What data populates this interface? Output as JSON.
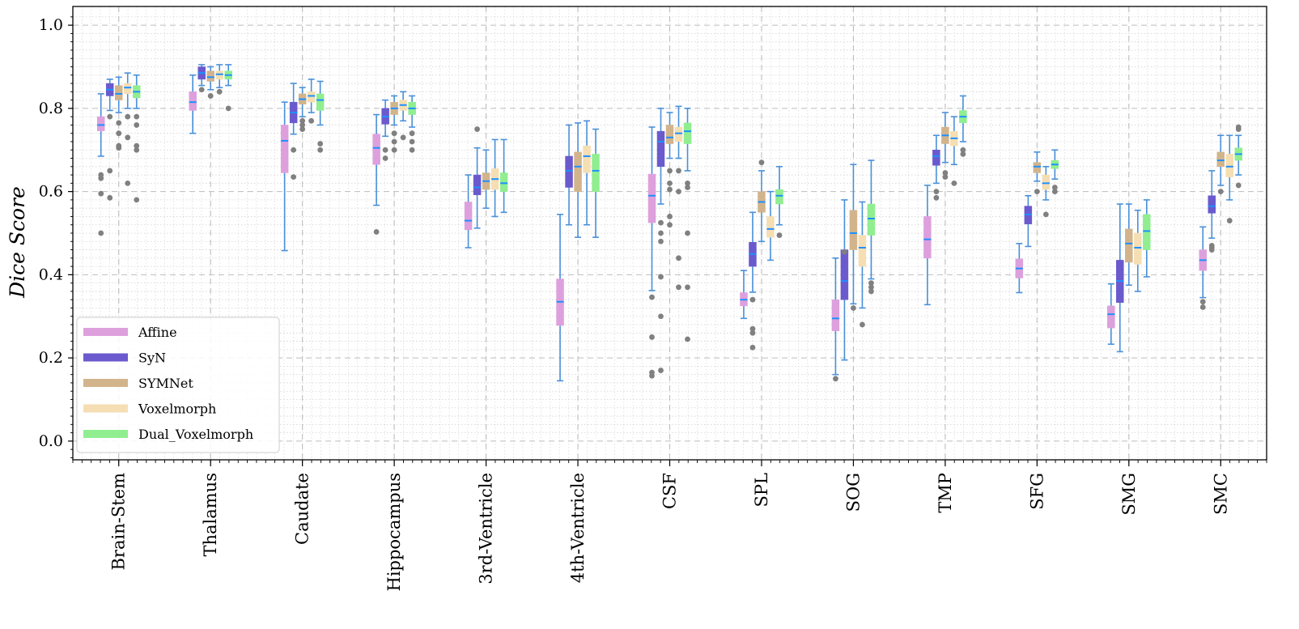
{
  "chart_data": {
    "type": "box",
    "ylabel": "Dice Score",
    "xlabel": "",
    "ylim": [
      -0.045,
      1.045
    ],
    "yticks": [
      0.0,
      0.2,
      0.4,
      0.6,
      0.8,
      1.0
    ],
    "ytick_labels": [
      "0.0",
      "0.2",
      "0.4",
      "0.6",
      "0.8",
      "1.0"
    ],
    "grid": true,
    "minor_grid": true,
    "legend_position": "lower-left",
    "categories": [
      "Brain-Stem",
      "Thalamus",
      "Caudate",
      "Hippocampus",
      "3rd-Ventricle",
      "4th-Ventricle",
      "CSF",
      "SPL",
      "SOG",
      "TMP",
      "SFG",
      "SMG",
      "SMC"
    ],
    "colors": {
      "median": "#1e90ff",
      "whisker": "#4a90d9",
      "outlier": "#808080",
      "grid": "#c8c8c8"
    },
    "series": [
      {
        "name": "Affine",
        "color": "#dda0dd",
        "stats": [
          {
            "q1": 0.746,
            "median": 0.76,
            "q3": 0.78,
            "whislo": 0.685,
            "whishi": 0.835,
            "fliers": [
              0.5,
              0.595,
              0.632,
              0.64
            ]
          },
          {
            "q1": 0.795,
            "median": 0.815,
            "q3": 0.84,
            "whislo": 0.74,
            "whishi": 0.88,
            "fliers": []
          },
          {
            "q1": 0.645,
            "median": 0.722,
            "q3": 0.76,
            "whislo": 0.458,
            "whishi": 0.815,
            "fliers": []
          },
          {
            "q1": 0.665,
            "median": 0.705,
            "q3": 0.738,
            "whislo": 0.567,
            "whishi": 0.785,
            "fliers": [
              0.503
            ]
          },
          {
            "q1": 0.508,
            "median": 0.53,
            "q3": 0.575,
            "whislo": 0.465,
            "whishi": 0.64,
            "fliers": []
          },
          {
            "q1": 0.278,
            "median": 0.335,
            "q3": 0.39,
            "whislo": 0.145,
            "whishi": 0.545,
            "fliers": []
          },
          {
            "q1": 0.525,
            "median": 0.59,
            "q3": 0.642,
            "whislo": 0.362,
            "whishi": 0.755,
            "fliers": [
              0.157,
              0.165,
              0.25,
              0.346
            ]
          },
          {
            "q1": 0.325,
            "median": 0.34,
            "q3": 0.357,
            "whislo": 0.295,
            "whishi": 0.41,
            "fliers": []
          },
          {
            "q1": 0.265,
            "median": 0.295,
            "q3": 0.34,
            "whislo": 0.16,
            "whishi": 0.44,
            "fliers": [
              0.15
            ]
          },
          {
            "q1": 0.44,
            "median": 0.485,
            "q3": 0.54,
            "whislo": 0.328,
            "whishi": 0.615,
            "fliers": []
          },
          {
            "q1": 0.392,
            "median": 0.415,
            "q3": 0.438,
            "whislo": 0.357,
            "whishi": 0.475,
            "fliers": []
          },
          {
            "q1": 0.272,
            "median": 0.305,
            "q3": 0.325,
            "whislo": 0.233,
            "whishi": 0.378,
            "fliers": []
          },
          {
            "q1": 0.41,
            "median": 0.435,
            "q3": 0.46,
            "whislo": 0.345,
            "whishi": 0.515,
            "fliers": [
              0.322,
              0.335
            ]
          }
        ]
      },
      {
        "name": "SyN",
        "color": "#6a5acd",
        "stats": [
          {
            "q1": 0.83,
            "median": 0.845,
            "q3": 0.86,
            "whislo": 0.795,
            "whishi": 0.87,
            "fliers": [
              0.78,
              0.65,
              0.585
            ]
          },
          {
            "q1": 0.87,
            "median": 0.885,
            "q3": 0.9,
            "whislo": 0.855,
            "whishi": 0.905,
            "fliers": [
              0.845
            ]
          },
          {
            "q1": 0.765,
            "median": 0.79,
            "q3": 0.815,
            "whislo": 0.738,
            "whishi": 0.86,
            "fliers": [
              0.7,
              0.635
            ]
          },
          {
            "q1": 0.762,
            "median": 0.78,
            "q3": 0.8,
            "whislo": 0.733,
            "whishi": 0.82,
            "fliers": [
              0.7,
              0.68
            ]
          },
          {
            "q1": 0.592,
            "median": 0.61,
            "q3": 0.64,
            "whislo": 0.512,
            "whishi": 0.705,
            "fliers": [
              0.75
            ]
          },
          {
            "q1": 0.61,
            "median": 0.65,
            "q3": 0.685,
            "whislo": 0.52,
            "whishi": 0.76,
            "fliers": []
          },
          {
            "q1": 0.66,
            "median": 0.72,
            "q3": 0.745,
            "whislo": 0.57,
            "whishi": 0.8,
            "fliers": [
              0.525,
              0.5,
              0.48,
              0.395,
              0.3,
              0.17
            ]
          },
          {
            "q1": 0.42,
            "median": 0.45,
            "q3": 0.478,
            "whislo": 0.358,
            "whishi": 0.55,
            "fliers": [
              0.34,
              0.27,
              0.26,
              0.225
            ]
          },
          {
            "q1": 0.34,
            "median": 0.385,
            "q3": 0.46,
            "whislo": 0.195,
            "whishi": 0.58,
            "fliers": [
              0.455
            ]
          },
          {
            "q1": 0.663,
            "median": 0.685,
            "q3": 0.7,
            "whislo": 0.62,
            "whishi": 0.735,
            "fliers": [
              0.6,
              0.585
            ]
          },
          {
            "q1": 0.522,
            "median": 0.545,
            "q3": 0.565,
            "whislo": 0.468,
            "whishi": 0.59,
            "fliers": []
          },
          {
            "q1": 0.333,
            "median": 0.385,
            "q3": 0.435,
            "whislo": 0.215,
            "whishi": 0.57,
            "fliers": []
          },
          {
            "q1": 0.548,
            "median": 0.565,
            "q3": 0.59,
            "whislo": 0.488,
            "whishi": 0.65,
            "fliers": [
              0.46,
              0.465,
              0.47
            ]
          }
        ]
      },
      {
        "name": "SYMNet",
        "color": "#d2b48c",
        "stats": [
          {
            "q1": 0.82,
            "median": 0.835,
            "q3": 0.855,
            "whislo": 0.79,
            "whishi": 0.875,
            "fliers": [
              0.765,
              0.74,
              0.705,
              0.71
            ]
          },
          {
            "q1": 0.865,
            "median": 0.875,
            "q3": 0.89,
            "whislo": 0.845,
            "whishi": 0.9,
            "fliers": [
              0.83
            ]
          },
          {
            "q1": 0.81,
            "median": 0.822,
            "q3": 0.835,
            "whislo": 0.78,
            "whishi": 0.85,
            "fliers": [
              0.77,
              0.76,
              0.75
            ]
          },
          {
            "q1": 0.785,
            "median": 0.8,
            "q3": 0.815,
            "whislo": 0.76,
            "whishi": 0.83,
            "fliers": [
              0.74,
              0.72,
              0.7
            ]
          },
          {
            "q1": 0.605,
            "median": 0.625,
            "q3": 0.645,
            "whislo": 0.56,
            "whishi": 0.7,
            "fliers": []
          },
          {
            "q1": 0.6,
            "median": 0.66,
            "q3": 0.695,
            "whislo": 0.49,
            "whishi": 0.765,
            "fliers": []
          },
          {
            "q1": 0.715,
            "median": 0.73,
            "q3": 0.76,
            "whislo": 0.68,
            "whishi": 0.79,
            "fliers": [
              0.65,
              0.62,
              0.605,
              0.54,
              0.52
            ]
          },
          {
            "q1": 0.55,
            "median": 0.575,
            "q3": 0.6,
            "whislo": 0.48,
            "whishi": 0.65,
            "fliers": [
              0.67
            ]
          },
          {
            "q1": 0.46,
            "median": 0.5,
            "q3": 0.555,
            "whislo": 0.33,
            "whishi": 0.665,
            "fliers": [
              0.32
            ]
          },
          {
            "q1": 0.715,
            "median": 0.735,
            "q3": 0.755,
            "whislo": 0.67,
            "whishi": 0.79,
            "fliers": [
              0.645,
              0.635
            ]
          },
          {
            "q1": 0.645,
            "median": 0.66,
            "q3": 0.67,
            "whislo": 0.625,
            "whishi": 0.695,
            "fliers": [
              0.6
            ]
          },
          {
            "q1": 0.43,
            "median": 0.475,
            "q3": 0.51,
            "whislo": 0.375,
            "whishi": 0.57,
            "fliers": []
          },
          {
            "q1": 0.66,
            "median": 0.675,
            "q3": 0.695,
            "whislo": 0.615,
            "whishi": 0.735,
            "fliers": [
              0.6
            ]
          }
        ]
      },
      {
        "name": "Voxelmorph",
        "color": "#f5deb3",
        "stats": [
          {
            "q1": 0.835,
            "median": 0.85,
            "q3": 0.86,
            "whislo": 0.8,
            "whishi": 0.885,
            "fliers": [
              0.78,
              0.73,
              0.62
            ]
          },
          {
            "q1": 0.87,
            "median": 0.882,
            "q3": 0.89,
            "whislo": 0.85,
            "whishi": 0.905,
            "fliers": [
              0.84
            ]
          },
          {
            "q1": 0.815,
            "median": 0.83,
            "q3": 0.84,
            "whislo": 0.79,
            "whishi": 0.87,
            "fliers": [
              0.77
            ]
          },
          {
            "q1": 0.795,
            "median": 0.808,
            "q3": 0.82,
            "whislo": 0.77,
            "whishi": 0.84,
            "fliers": [
              0.73
            ]
          },
          {
            "q1": 0.605,
            "median": 0.63,
            "q3": 0.655,
            "whislo": 0.54,
            "whishi": 0.725,
            "fliers": []
          },
          {
            "q1": 0.645,
            "median": 0.685,
            "q3": 0.71,
            "whislo": 0.52,
            "whishi": 0.77,
            "fliers": []
          },
          {
            "q1": 0.72,
            "median": 0.74,
            "q3": 0.755,
            "whislo": 0.68,
            "whishi": 0.805,
            "fliers": [
              0.65,
              0.6,
              0.44,
              0.37
            ]
          },
          {
            "q1": 0.49,
            "median": 0.51,
            "q3": 0.54,
            "whislo": 0.435,
            "whishi": 0.6,
            "fliers": []
          },
          {
            "q1": 0.42,
            "median": 0.465,
            "q3": 0.495,
            "whislo": 0.32,
            "whishi": 0.575,
            "fliers": [
              0.28
            ]
          },
          {
            "q1": 0.71,
            "median": 0.728,
            "q3": 0.745,
            "whislo": 0.665,
            "whishi": 0.78,
            "fliers": [
              0.62
            ]
          },
          {
            "q1": 0.605,
            "median": 0.62,
            "q3": 0.64,
            "whislo": 0.58,
            "whishi": 0.66,
            "fliers": [
              0.545
            ]
          },
          {
            "q1": 0.425,
            "median": 0.465,
            "q3": 0.5,
            "whislo": 0.36,
            "whishi": 0.555,
            "fliers": []
          },
          {
            "q1": 0.635,
            "median": 0.66,
            "q3": 0.69,
            "whislo": 0.58,
            "whishi": 0.735,
            "fliers": [
              0.53
            ]
          }
        ]
      },
      {
        "name": "Dual_Voxelmorph",
        "color": "#90ee90",
        "stats": [
          {
            "q1": 0.825,
            "median": 0.84,
            "q3": 0.855,
            "whislo": 0.8,
            "whishi": 0.88,
            "fliers": [
              0.78,
              0.76,
              0.71,
              0.7,
              0.58
            ]
          },
          {
            "q1": 0.87,
            "median": 0.88,
            "q3": 0.89,
            "whislo": 0.855,
            "whishi": 0.905,
            "fliers": [
              0.8
            ]
          },
          {
            "q1": 0.795,
            "median": 0.82,
            "q3": 0.835,
            "whislo": 0.76,
            "whishi": 0.865,
            "fliers": [
              0.715,
              0.7
            ]
          },
          {
            "q1": 0.785,
            "median": 0.8,
            "q3": 0.815,
            "whislo": 0.755,
            "whishi": 0.83,
            "fliers": [
              0.74,
              0.72,
              0.7
            ]
          },
          {
            "q1": 0.6,
            "median": 0.62,
            "q3": 0.645,
            "whislo": 0.55,
            "whishi": 0.725,
            "fliers": []
          },
          {
            "q1": 0.6,
            "median": 0.65,
            "q3": 0.69,
            "whislo": 0.49,
            "whishi": 0.75,
            "fliers": []
          },
          {
            "q1": 0.715,
            "median": 0.745,
            "q3": 0.765,
            "whislo": 0.65,
            "whishi": 0.8,
            "fliers": [
              0.62,
              0.61,
              0.5,
              0.37,
              0.245
            ]
          },
          {
            "q1": 0.57,
            "median": 0.59,
            "q3": 0.605,
            "whislo": 0.52,
            "whishi": 0.66,
            "fliers": [
              0.495
            ]
          },
          {
            "q1": 0.495,
            "median": 0.535,
            "q3": 0.57,
            "whislo": 0.39,
            "whishi": 0.675,
            "fliers": [
              0.38,
              0.37,
              0.36
            ]
          },
          {
            "q1": 0.765,
            "median": 0.78,
            "q3": 0.795,
            "whislo": 0.72,
            "whishi": 0.83,
            "fliers": [
              0.7,
              0.69
            ]
          },
          {
            "q1": 0.655,
            "median": 0.665,
            "q3": 0.675,
            "whislo": 0.63,
            "whishi": 0.7,
            "fliers": [
              0.61,
              0.6
            ]
          },
          {
            "q1": 0.46,
            "median": 0.505,
            "q3": 0.545,
            "whislo": 0.395,
            "whishi": 0.58,
            "fliers": []
          },
          {
            "q1": 0.675,
            "median": 0.69,
            "q3": 0.705,
            "whislo": 0.64,
            "whishi": 0.735,
            "fliers": [
              0.615,
              0.75,
              0.755
            ]
          }
        ]
      }
    ]
  }
}
